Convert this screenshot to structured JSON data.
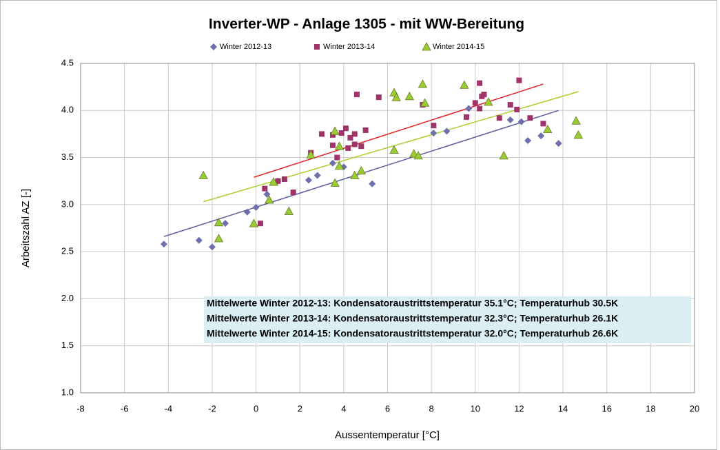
{
  "chart_data": {
    "type": "scatter",
    "title": "Inverter-WP - Anlage 1305 - mit WW-Bereitung",
    "x_label": "Aussentemperatur [°C]",
    "y_label": "Arbeitszahl AZ [-]",
    "xlim": [
      -8,
      20
    ],
    "ylim": [
      1.0,
      4.5
    ],
    "xticks": [
      -8,
      -6,
      -4,
      -2,
      0,
      2,
      4,
      6,
      8,
      10,
      12,
      14,
      16,
      18,
      20
    ],
    "yticks": [
      {
        "value": 1.0,
        "label": "1.0"
      },
      1.5,
      {
        "value": 2.0,
        "label": "2.0"
      },
      2.5,
      {
        "value": 3.0,
        "label": "3.0"
      },
      3.5,
      {
        "value": 4.0,
        "label": "4.0"
      },
      4.5
    ],
    "grid": true,
    "legend": "top",
    "annotations": [
      "Mittelwerte Winter 2012-13: Kondensatoraustrittstemperatur 35.1°C; Temperaturhub 30.5K",
      "Mittelwerte Winter 2013-14: Kondensatoraustrittstemperatur 32.3°C; Temperaturhub 26.1K",
      "Mittelwerte Winter 2014-15: Kondensatoraustrittstemperatur 32.0°C; Temperaturhub 26.6K"
    ],
    "series": [
      {
        "name": "Winter 2012-13",
        "color": "#6f6fae",
        "marker": "diamond",
        "x": [
          -4.2,
          -2.6,
          -2.0,
          -1.4,
          -0.4,
          0,
          0.5,
          1.0,
          2.4,
          2.8,
          3.5,
          4.0,
          5.3,
          8.1,
          8.7,
          9.7,
          11.6,
          12.1,
          12.4,
          13.0,
          13.8
        ],
        "values": [
          2.58,
          2.62,
          2.55,
          2.8,
          2.92,
          2.97,
          3.11,
          3.25,
          3.26,
          3.31,
          3.44,
          3.4,
          3.22,
          3.76,
          3.78,
          4.02,
          3.9,
          3.88,
          3.68,
          3.73,
          3.65
        ],
        "trendline": {
          "x": [
            -4.2,
            13.8
          ],
          "values": [
            2.66,
            4.0
          ],
          "color": "#5b5b9e"
        }
      },
      {
        "name": "Winter 2013-14",
        "color": "#a0336a",
        "marker": "square",
        "x": [
          0.2,
          0.4,
          1.0,
          1.3,
          1.7,
          2.5,
          3.0,
          3.5,
          3.5,
          3.7,
          3.9,
          4.1,
          4.2,
          4.3,
          4.5,
          4.5,
          4.6,
          4.8,
          5.0,
          5.6,
          7.6,
          8.1,
          9.6,
          10.0,
          10.2,
          10.2,
          10.3,
          10.4,
          11.1,
          11.6,
          11.9,
          12.0,
          12.5,
          13.1
        ],
        "values": [
          2.8,
          3.17,
          3.25,
          3.27,
          3.13,
          3.55,
          3.75,
          3.63,
          3.74,
          3.5,
          3.76,
          3.81,
          3.6,
          3.71,
          3.75,
          3.64,
          4.17,
          3.62,
          3.79,
          4.14,
          4.06,
          3.84,
          3.93,
          4.08,
          4.02,
          4.29,
          4.15,
          4.17,
          3.92,
          4.06,
          4.01,
          4.32,
          3.92,
          3.86
        ],
        "trendline": {
          "x": [
            -0.1,
            13.1
          ],
          "values": [
            3.29,
            4.28
          ],
          "color": "#e02020"
        }
      },
      {
        "name": "Winter 2014-15",
        "color": "#9acd32",
        "marker": "triangle",
        "x": [
          -2.4,
          -1.7,
          -1.7,
          -0.1,
          0.6,
          0.8,
          1.5,
          2.5,
          3.6,
          3.6,
          3.8,
          3.8,
          4.5,
          4.8,
          6.3,
          6.3,
          6.4,
          7.0,
          7.2,
          7.4,
          7.6,
          7.7,
          9.5,
          10.6,
          11.3,
          13.3,
          14.6,
          14.7
        ],
        "values": [
          3.31,
          2.81,
          2.64,
          2.8,
          3.05,
          3.24,
          2.93,
          3.53,
          3.78,
          3.23,
          3.62,
          3.41,
          3.31,
          3.36,
          3.58,
          4.19,
          4.14,
          4.15,
          3.54,
          3.52,
          4.28,
          4.08,
          4.27,
          4.09,
          3.52,
          3.8,
          3.89,
          3.74
        ],
        "trendline": {
          "x": [
            -2.4,
            14.7
          ],
          "values": [
            3.03,
            4.2
          ],
          "color": "#a8d028"
        }
      }
    ]
  }
}
